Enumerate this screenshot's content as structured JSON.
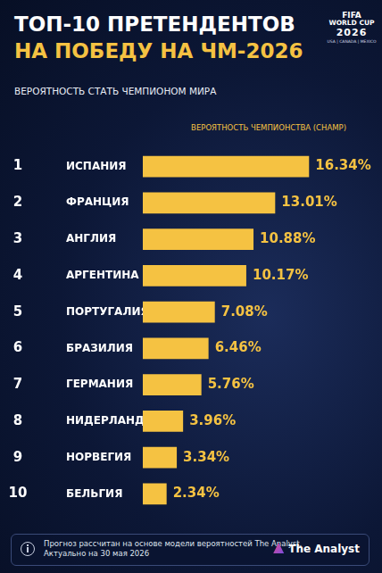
{
  "chart_data": {
    "type": "bar",
    "orientation": "horizontal",
    "title": [
      "ТОП-10 ПРЕТЕНДЕНТОВ",
      "НА ПОБЕДУ НА ЧМ-2026"
    ],
    "subtitle": "ВЕРОЯТНОСТЬ СТАТЬ ЧЕМПИОНОМ МИРА",
    "logo": [
      "FIFA",
      "WORLD CUP",
      "2026",
      "USA | CANADA | MEXICO"
    ],
    "ranks": [
      1,
      2,
      3,
      4,
      5,
      6,
      7,
      8,
      9,
      10
    ],
    "categories": [
      "ИСПАНИЯ",
      "ФРАНЦИЯ",
      "АНГЛИЯ",
      "АРГЕНТИНА",
      "ПОРТУГАЛИЯ",
      "БРАЗИЛИЯ",
      "ГЕРМАНИЯ",
      "НИДЕРЛАНДЫ",
      "НОРВЕГИЯ",
      "БЕЛЬГИЯ"
    ],
    "series": [
      {
        "name": "ВЕРОЯТНОСТЬ ЧЕМПИОНСТВА (CHAMP)",
        "color": "#f5c242",
        "values": [
          16.34,
          13.01,
          10.88,
          10.17,
          7.08,
          6.46,
          5.76,
          3.96,
          3.34,
          2.34
        ],
        "value_labels": [
          "16.34%",
          "13.01%",
          "10.88%",
          "10.17%",
          "7.08%",
          "6.46%",
          "5.76%",
          "3.96%",
          "3.34%",
          "2.34%"
        ]
      }
    ],
    "xlim": [
      0,
      20
    ],
    "grid": false,
    "data_labels": true,
    "tick_labels": "y",
    "footnote": [
      "Прогноз рассчитан на основе модели вероятностей The Analyst.",
      "Актуально на 30 мая 2026"
    ],
    "source": "The Analyst"
  }
}
